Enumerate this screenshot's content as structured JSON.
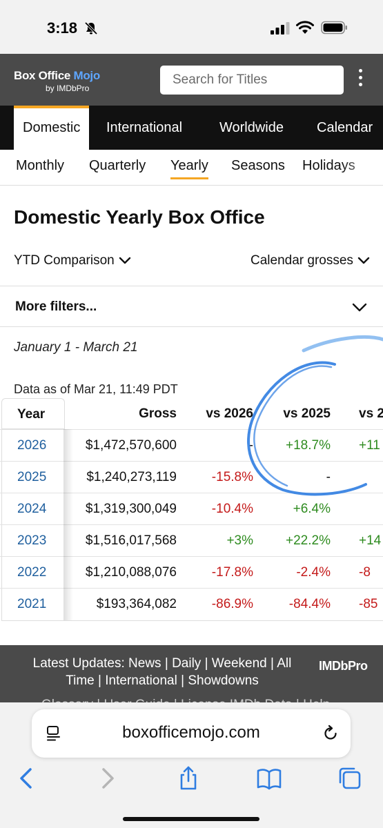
{
  "status": {
    "time": "3:18"
  },
  "header": {
    "logo_main": "Box Office ",
    "logo_accent": "Mojo",
    "logo_sub": "by IMDbPro",
    "search_placeholder": "Search for Titles"
  },
  "nav": {
    "tabs": [
      {
        "label": "Domestic",
        "active": true
      },
      {
        "label": "International"
      },
      {
        "label": "Worldwide"
      },
      {
        "label": "Calendar"
      }
    ]
  },
  "subnav": {
    "items": [
      {
        "label": "Monthly"
      },
      {
        "label": "Quarterly"
      },
      {
        "label": "Yearly",
        "active": true
      },
      {
        "label": "Seasons"
      },
      {
        "label": "Holidays"
      }
    ]
  },
  "page": {
    "title": "Domestic Yearly Box Office",
    "comparison_dropdown": "YTD Comparison",
    "grosses_dropdown": "Calendar grosses",
    "more_filters": "More filters...",
    "date_range": "January 1 - March 21",
    "data_as_of": "Data as of Mar 21, 11:49 PDT"
  },
  "table": {
    "headers": [
      "Year",
      "Gross",
      "vs 2026",
      "vs 2025",
      "vs 2"
    ],
    "rows": [
      {
        "year": "2026",
        "gross": "$1,472,570,600",
        "vs2026": "-",
        "vs2025": "+18.7%",
        "vs2024": "+11"
      },
      {
        "year": "2025",
        "gross": "$1,240,273,119",
        "vs2026": "-15.8%",
        "vs2025": "-",
        "vs2024": ""
      },
      {
        "year": "2024",
        "gross": "$1,319,300,049",
        "vs2026": "-10.4%",
        "vs2025": "+6.4%",
        "vs2024": ""
      },
      {
        "year": "2023",
        "gross": "$1,516,017,568",
        "vs2026": "+3%",
        "vs2025": "+22.2%",
        "vs2024": "+14"
      },
      {
        "year": "2022",
        "gross": "$1,210,088,076",
        "vs2026": "-17.8%",
        "vs2025": "-2.4%",
        "vs2024": "-8"
      },
      {
        "year": "2021",
        "gross": "$193,364,082",
        "vs2026": "-86.9%",
        "vs2025": "-84.4%",
        "vs2024": "-85"
      }
    ]
  },
  "footer": {
    "prefix": "Latest Updates: ",
    "links": [
      "News",
      "Daily",
      "Weekend",
      "All Time",
      "International",
      "Showdowns"
    ],
    "clipped_line": "Glossary | User Guide | License IMDb Data | Help",
    "brand": "IMDbPro"
  },
  "browser": {
    "url": "boxofficemojo.com"
  },
  "colors": {
    "accent": "#f5a623",
    "link": "#1f5f9e",
    "positive": "#2e8b1f",
    "negative": "#c41a1a",
    "header_bg": "#4a4a4a",
    "nav_bg": "#111111",
    "safari_blue": "#2f7de1"
  }
}
